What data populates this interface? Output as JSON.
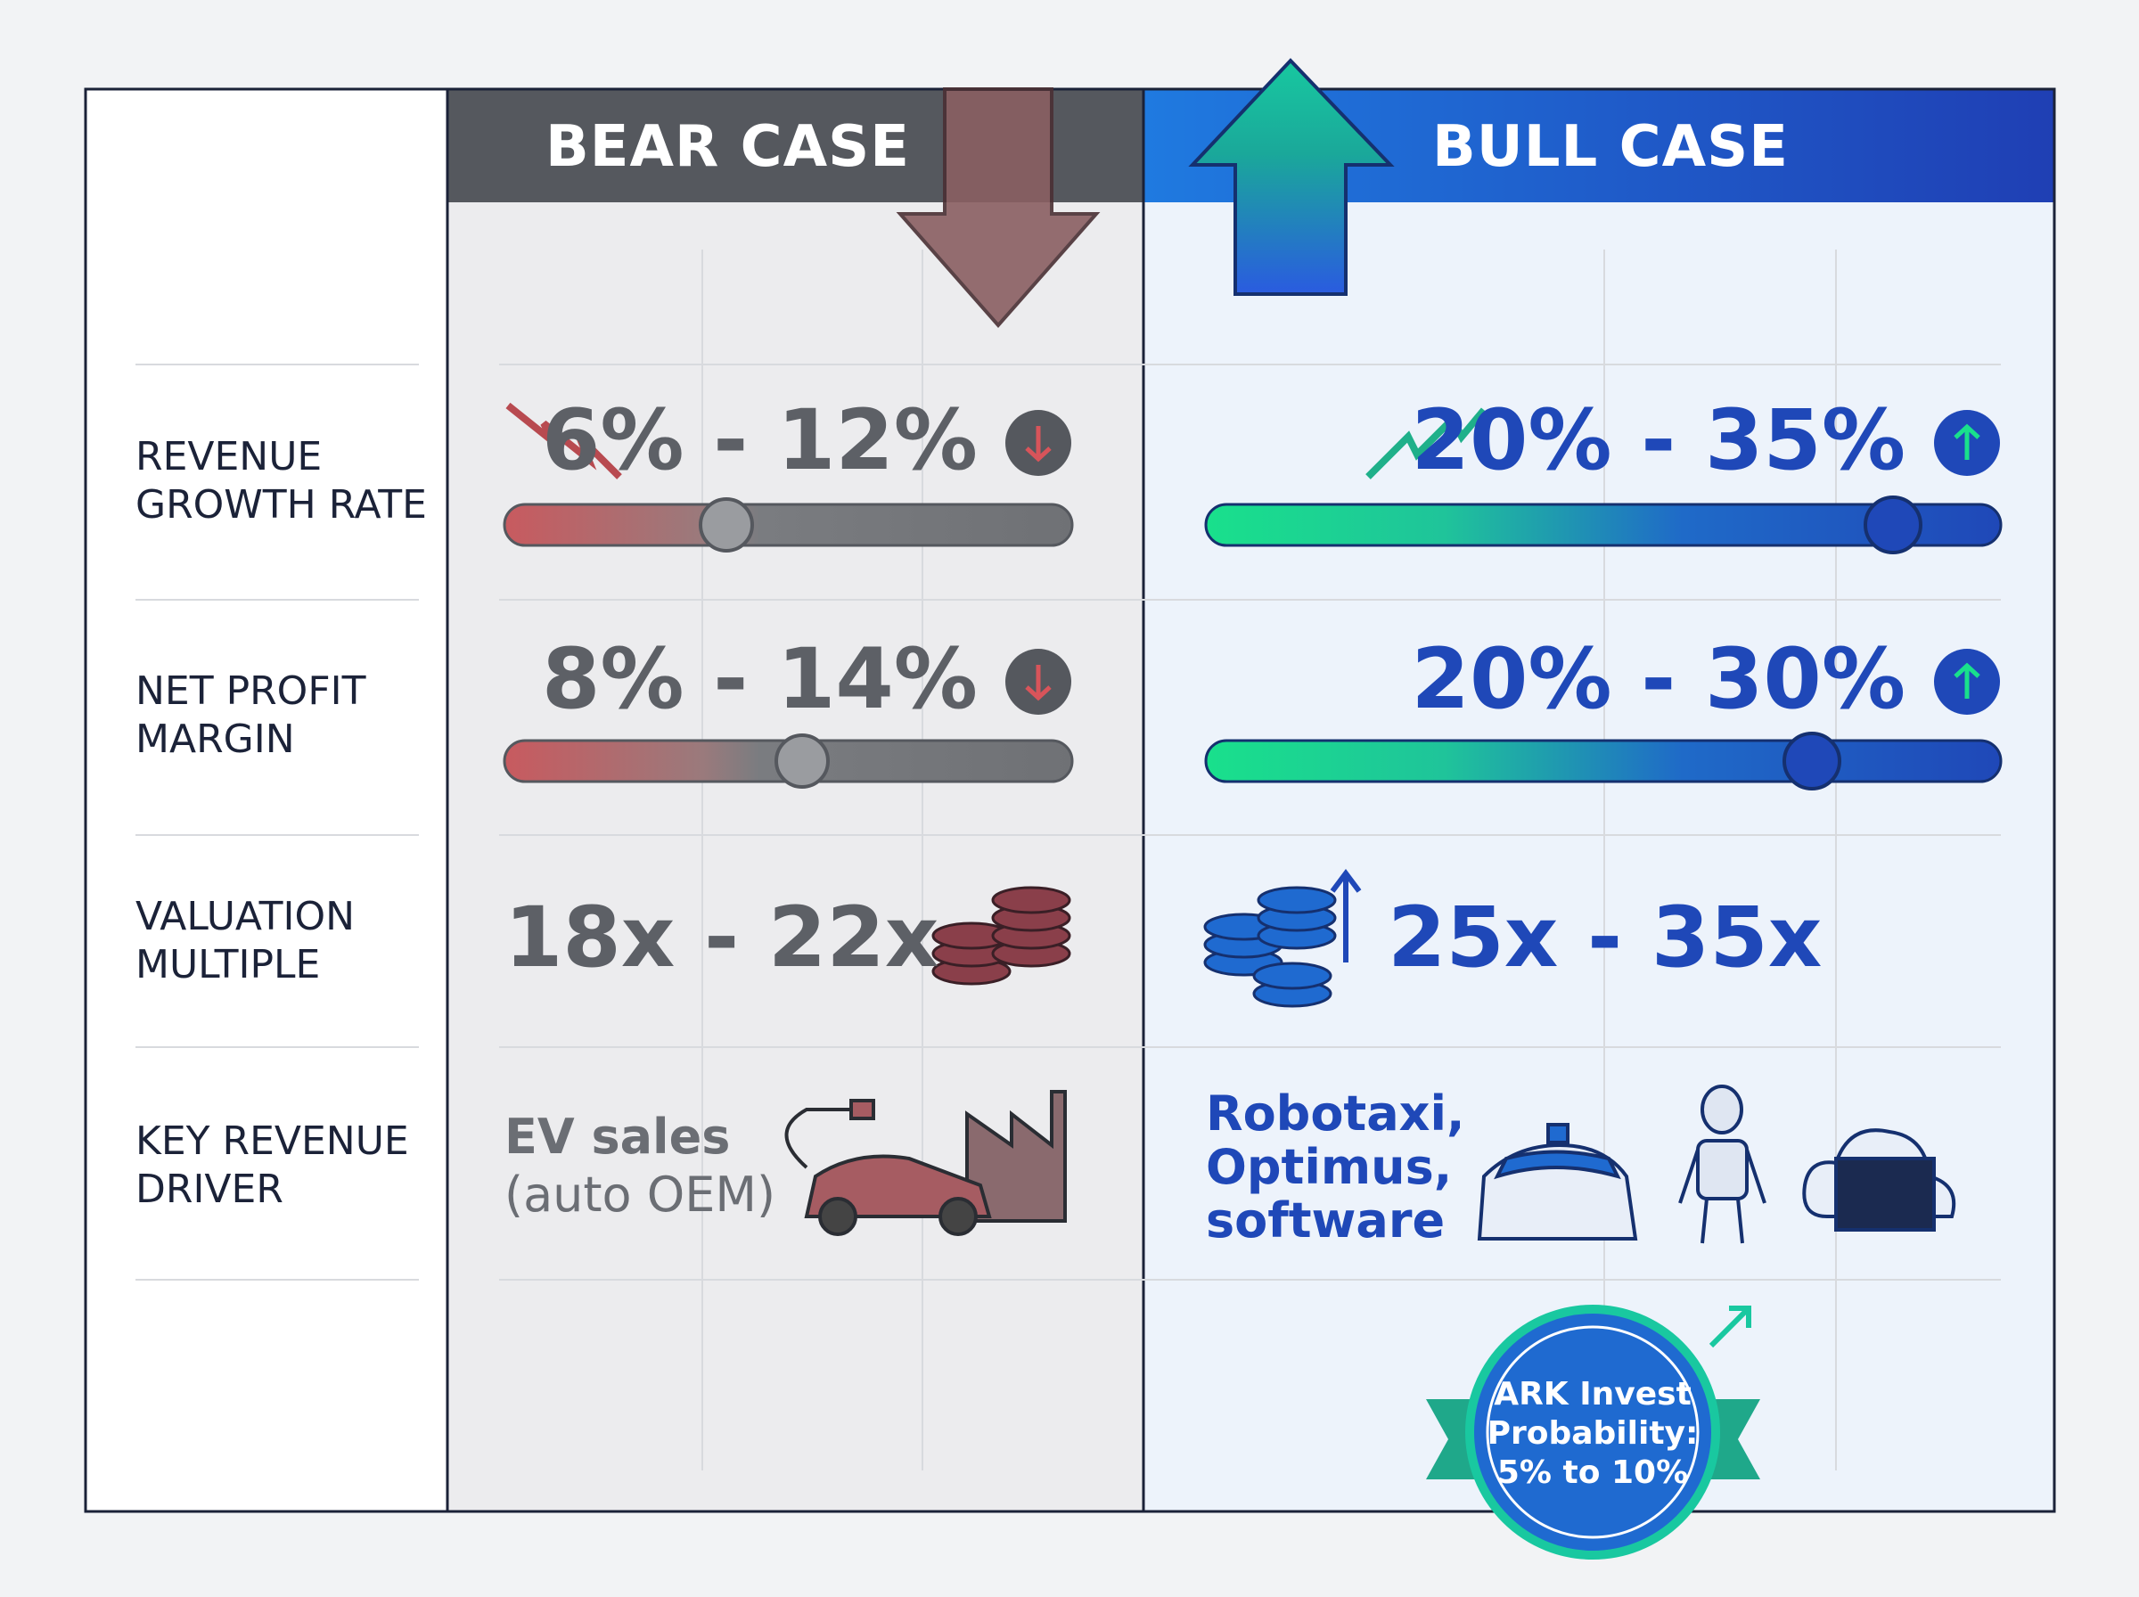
{
  "columns": {
    "bear": "BEAR CASE",
    "bull": "BULL CASE"
  },
  "rows": [
    {
      "label": "REVENUE GROWTH RATE",
      "bear": "6% - 12%",
      "bull": "20% - 35%"
    },
    {
      "label": "NET PROFIT MARGIN",
      "bear": "8% - 14%",
      "bull": "20% - 30%"
    },
    {
      "label": "VALUATION MULTIPLE",
      "bear": "18x - 22x",
      "bull": "25x - 35x"
    }
  ],
  "driver": {
    "label": "KEY REVENUE DRIVER",
    "bear": [
      "EV sales",
      "(auto OEM)"
    ],
    "bull": "Robotaxi, Optimus, software"
  },
  "badge": [
    "ARK Invest",
    "Probability:",
    "5% to 10%"
  ]
}
